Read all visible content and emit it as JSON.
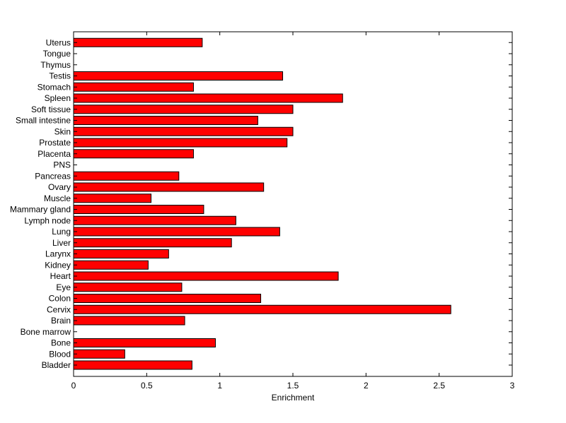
{
  "chart_data": {
    "type": "bar",
    "orientation": "horizontal",
    "xlabel": "Enrichment",
    "ylabel": "",
    "title": "",
    "xlim": [
      0,
      3
    ],
    "xticks": [
      0,
      0.5,
      1,
      1.5,
      2,
      2.5,
      3
    ],
    "xtick_labels": [
      "0",
      "0.5",
      "1",
      "1.5",
      "2",
      "2.5",
      "3"
    ],
    "grid": false,
    "bar_color": "#ff0000",
    "bar_edge_color": "#000000",
    "categories": [
      "Bladder",
      "Blood",
      "Bone",
      "Bone marrow",
      "Brain",
      "Cervix",
      "Colon",
      "Eye",
      "Heart",
      "Kidney",
      "Larynx",
      "Liver",
      "Lung",
      "Lymph node",
      "Mammary gland",
      "Muscle",
      "Ovary",
      "Pancreas",
      "PNS",
      "Placenta",
      "Prostate",
      "Skin",
      "Small intestine",
      "Soft tissue",
      "Spleen",
      "Stomach",
      "Testis",
      "Thymus",
      "Tongue",
      "Uterus"
    ],
    "values": [
      0.81,
      0.35,
      0.97,
      0,
      0.76,
      2.58,
      1.28,
      0.74,
      1.81,
      0.51,
      0.65,
      1.08,
      1.41,
      1.11,
      0.89,
      0.53,
      1.3,
      0.72,
      0,
      0.82,
      1.46,
      1.5,
      1.26,
      1.5,
      1.84,
      0.82,
      1.43,
      0,
      0,
      0.88
    ]
  }
}
